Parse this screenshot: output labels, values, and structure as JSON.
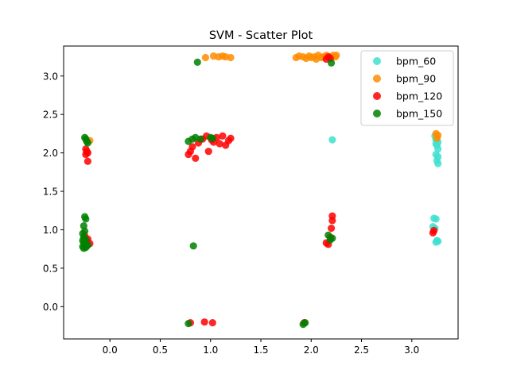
{
  "chart_data": {
    "type": "scatter",
    "title": "SVM - Scatter Plot",
    "xlabel": "",
    "ylabel": "",
    "xlim": [
      -0.46,
      3.46
    ],
    "ylim": [
      -0.42,
      3.39
    ],
    "xticks": [
      0.0,
      0.5,
      1.0,
      1.5,
      2.0,
      2.5,
      3.0
    ],
    "yticks": [
      0.0,
      0.5,
      1.0,
      1.5,
      2.0,
      2.5,
      3.0
    ],
    "xtick_labels": [
      "0.0",
      "0.5",
      "1.0",
      "1.5",
      "2.0",
      "2.5",
      "3.0"
    ],
    "ytick_labels": [
      "0.0",
      "0.5",
      "1.0",
      "1.5",
      "2.0",
      "2.5",
      "3.0"
    ],
    "grid": false,
    "legend_position": "top-right",
    "series": [
      {
        "name": "bpm_60",
        "color": "#40e0d0",
        "points": [
          [
            2.21,
            2.17
          ],
          [
            3.23,
            2.22
          ],
          [
            3.25,
            2.2
          ],
          [
            3.24,
            2.17
          ],
          [
            3.26,
            2.14
          ],
          [
            3.24,
            2.12
          ],
          [
            3.25,
            2.1
          ],
          [
            3.26,
            2.05
          ],
          [
            3.24,
            1.98
          ],
          [
            3.26,
            1.95
          ],
          [
            3.25,
            1.9
          ],
          [
            3.26,
            1.86
          ],
          [
            3.22,
            1.15
          ],
          [
            3.24,
            1.14
          ],
          [
            3.21,
            1.04
          ],
          [
            3.23,
            1.02
          ],
          [
            3.25,
            0.86
          ],
          [
            3.26,
            0.85
          ],
          [
            3.24,
            0.84
          ]
        ]
      },
      {
        "name": "bpm_90",
        "color": "#ff8c00",
        "points": [
          [
            0.95,
            3.24
          ],
          [
            1.03,
            3.26
          ],
          [
            1.08,
            3.25
          ],
          [
            1.12,
            3.26
          ],
          [
            1.15,
            3.25
          ],
          [
            1.2,
            3.24
          ],
          [
            1.85,
            3.24
          ],
          [
            1.88,
            3.26
          ],
          [
            1.92,
            3.25
          ],
          [
            1.95,
            3.23
          ],
          [
            1.98,
            3.26
          ],
          [
            2.0,
            3.24
          ],
          [
            2.03,
            3.25
          ],
          [
            2.05,
            3.22
          ],
          [
            2.07,
            3.27
          ],
          [
            2.1,
            3.24
          ],
          [
            2.12,
            3.25
          ],
          [
            2.15,
            3.27
          ],
          [
            2.18,
            3.25
          ],
          [
            2.2,
            3.24
          ],
          [
            2.22,
            3.27
          ],
          [
            2.24,
            3.25
          ],
          [
            2.25,
            3.27
          ],
          [
            -0.2,
            2.16
          ],
          [
            3.24,
            2.25
          ],
          [
            3.26,
            2.23
          ],
          [
            3.25,
            2.19
          ]
        ]
      },
      {
        "name": "bpm_120",
        "color": "#ff0000",
        "points": [
          [
            2.15,
            3.22
          ],
          [
            2.17,
            3.25
          ],
          [
            2.19,
            3.23
          ],
          [
            -0.24,
            2.05
          ],
          [
            -0.23,
            2.02
          ],
          [
            -0.24,
            1.98
          ],
          [
            -0.22,
            2.0
          ],
          [
            -0.22,
            1.89
          ],
          [
            0.78,
            1.98
          ],
          [
            0.8,
            2.02
          ],
          [
            0.82,
            2.08
          ],
          [
            0.85,
            1.93
          ],
          [
            0.88,
            2.13
          ],
          [
            0.92,
            2.18
          ],
          [
            0.96,
            2.22
          ],
          [
            0.98,
            2.02
          ],
          [
            1.01,
            2.17
          ],
          [
            1.03,
            2.14
          ],
          [
            1.06,
            2.2
          ],
          [
            1.09,
            2.12
          ],
          [
            1.12,
            2.22
          ],
          [
            1.15,
            2.1
          ],
          [
            1.18,
            2.16
          ],
          [
            1.2,
            2.19
          ],
          [
            -0.25,
            0.92
          ],
          [
            -0.23,
            0.85
          ],
          [
            -0.22,
            0.88
          ],
          [
            -0.2,
            0.82
          ],
          [
            2.15,
            0.83
          ],
          [
            2.17,
            0.81
          ],
          [
            2.19,
            0.9
          ],
          [
            2.2,
            1.02
          ],
          [
            2.21,
            1.12
          ],
          [
            2.21,
            1.18
          ],
          [
            3.21,
            0.96
          ],
          [
            3.22,
            0.99
          ],
          [
            0.8,
            -0.21
          ],
          [
            0.94,
            -0.2
          ],
          [
            1.02,
            -0.21
          ],
          [
            1.93,
            -0.21
          ]
        ]
      },
      {
        "name": "bpm_150",
        "color": "#008000",
        "points": [
          [
            0.87,
            3.18
          ],
          [
            2.2,
            3.17
          ],
          [
            -0.25,
            2.2
          ],
          [
            -0.24,
            2.18
          ],
          [
            -0.23,
            2.15
          ],
          [
            -0.22,
            2.13
          ],
          [
            0.78,
            2.15
          ],
          [
            0.82,
            2.18
          ],
          [
            0.85,
            2.2
          ],
          [
            0.9,
            2.18
          ],
          [
            1.0,
            2.2
          ],
          [
            1.02,
            2.19
          ],
          [
            -0.26,
            1.05
          ],
          [
            -0.25,
            1.17
          ],
          [
            -0.24,
            1.14
          ],
          [
            -0.27,
            0.95
          ],
          [
            -0.25,
            0.98
          ],
          [
            -0.26,
            0.9
          ],
          [
            -0.24,
            0.87
          ],
          [
            -0.27,
            0.86
          ],
          [
            -0.26,
            0.83
          ],
          [
            -0.25,
            0.8
          ],
          [
            -0.23,
            0.79
          ],
          [
            -0.27,
            0.78
          ],
          [
            -0.24,
            0.77
          ],
          [
            -0.22,
            0.8
          ],
          [
            -0.26,
            0.76
          ],
          [
            2.17,
            0.93
          ],
          [
            2.19,
            0.87
          ],
          [
            2.21,
            0.89
          ],
          [
            0.83,
            0.79
          ],
          [
            0.78,
            -0.22
          ],
          [
            1.92,
            -0.23
          ],
          [
            1.94,
            -0.21
          ]
        ]
      }
    ]
  }
}
